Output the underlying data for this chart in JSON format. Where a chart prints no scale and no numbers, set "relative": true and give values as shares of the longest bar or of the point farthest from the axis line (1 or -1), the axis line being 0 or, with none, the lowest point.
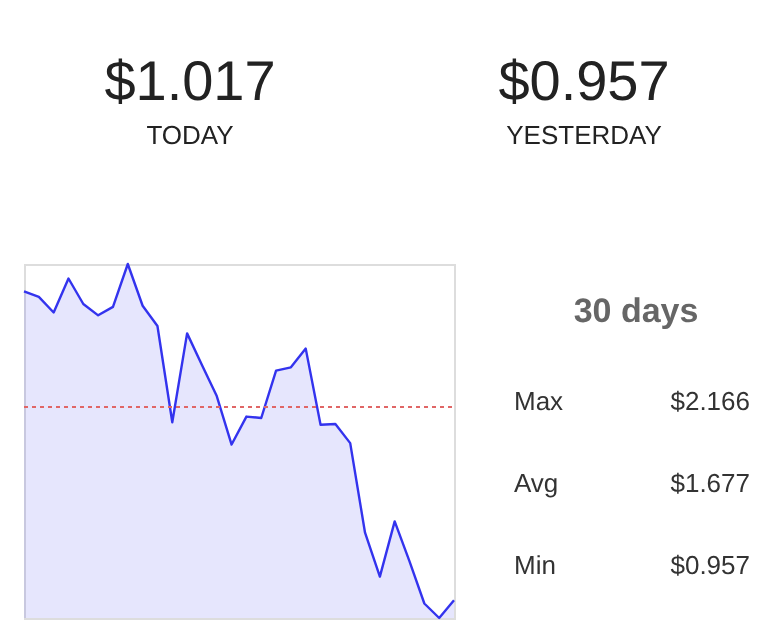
{
  "chart_data": {
    "type": "area",
    "relative": true,
    "categories": [
      null,
      null,
      null,
      null,
      null,
      null,
      null,
      null,
      null,
      null,
      null,
      null,
      null,
      null,
      null,
      null,
      null,
      null,
      null,
      null,
      null,
      null,
      null,
      null,
      null,
      null,
      null,
      null,
      null,
      null
    ],
    "series": [
      {
        "type": "area",
        "color": "#3333ee",
        "values": [
          0.923,
          0.907,
          0.863,
          0.959,
          0.887,
          0.855,
          0.879,
          1,
          0.882,
          0.825,
          0.553,
          0.804,
          0.715,
          0.627,
          0.49,
          0.569,
          0.565,
          0.699,
          0.708,
          0.761,
          0.546,
          0.548,
          0.494,
          0.241,
          0.117,
          0.273,
          0.16,
          0.041,
          0,
          0.05
        ]
      }
    ],
    "ref_lines": [
      {
        "axis": "y",
        "value": 0.596,
        "color": "#e06666",
        "line_style": "dotted"
      }
    ],
    "annotations": [
      "$1.017",
      "TODAY",
      "$0.957",
      "YESTERDAY",
      "30 days",
      "Max",
      "$2.166",
      "Avg",
      "$1.677",
      "Min",
      "$0.957"
    ],
    "tick_labels": false,
    "grid": false,
    "legend": false,
    "marker": "none",
    "line_style": "solid"
  }
}
